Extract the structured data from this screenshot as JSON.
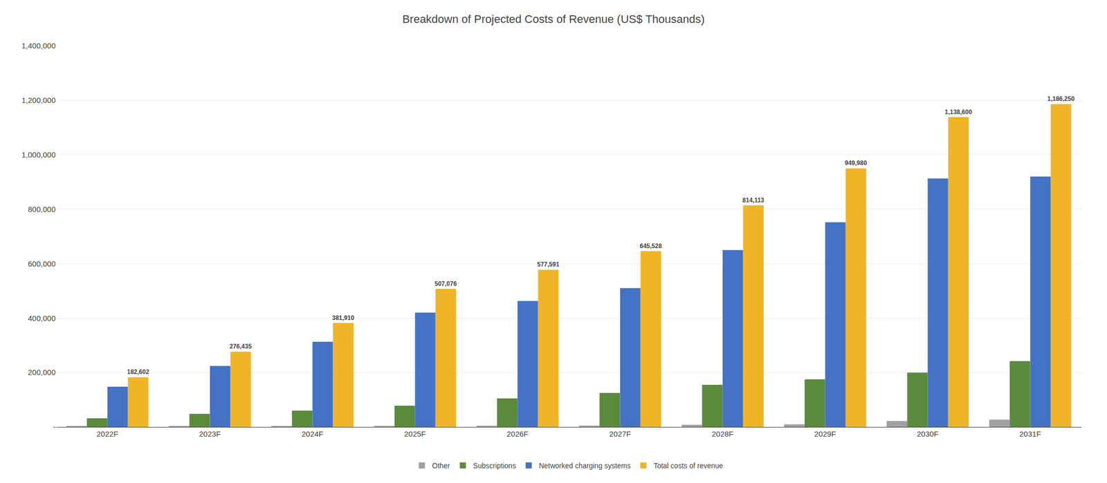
{
  "chart_data": {
    "type": "bar",
    "title": "Breakdown of Projected Costs of Revenue (US$ Thousands)",
    "categories": [
      "2022F",
      "2023F",
      "2024F",
      "2025F",
      "2026F",
      "2027F",
      "2028F",
      "2029F",
      "2030F",
      "2031F"
    ],
    "series": [
      {
        "name": "Other",
        "color": "#a0a0a0",
        "values": [
          3000,
          2500,
          3500,
          4000,
          4500,
          5000,
          8000,
          10000,
          22000,
          27000
        ]
      },
      {
        "name": "Subscriptions",
        "color": "#5a8a3c",
        "values": [
          32000,
          48000,
          60000,
          78000,
          105000,
          125000,
          155000,
          175000,
          200000,
          242000
        ]
      },
      {
        "name": "Networked charging systems",
        "color": "#4472c4",
        "values": [
          148000,
          224000,
          313000,
          420000,
          463000,
          510000,
          650000,
          752000,
          913000,
          920000
        ]
      },
      {
        "name": "Total costs of revenue",
        "color": "#f0b429",
        "values": [
          182602,
          276435,
          381910,
          507076,
          577591,
          645528,
          814113,
          949980,
          1138600,
          1186250
        ],
        "data_labels": true,
        "value_labels": [
          "182,602",
          "276,435",
          "381,910",
          "507,076",
          "577,591",
          "645,528",
          "814,113",
          "949,980",
          "1,138,600",
          "1,186,250"
        ]
      }
    ],
    "ylim": [
      0,
      1400000
    ],
    "yticks": [
      {
        "value": 0,
        "label": "-"
      },
      {
        "value": 200000,
        "label": "200,000"
      },
      {
        "value": 400000,
        "label": "400,000"
      },
      {
        "value": 600000,
        "label": "600,000"
      },
      {
        "value": 800000,
        "label": "800,000"
      },
      {
        "value": 1000000,
        "label": "1,000,000"
      },
      {
        "value": 1200000,
        "label": "1,200,000"
      },
      {
        "value": 1400000,
        "label": "1,400,000"
      }
    ],
    "grid": true,
    "legend": "bottom"
  }
}
